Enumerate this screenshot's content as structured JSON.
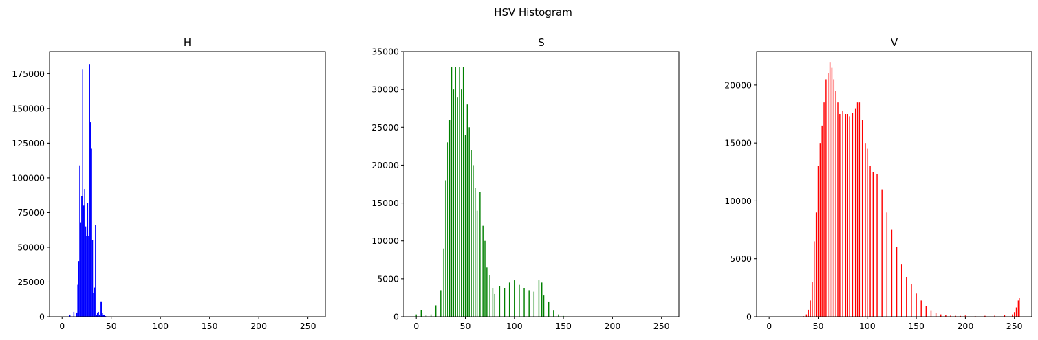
{
  "figure": {
    "suptitle": "HSV Histogram"
  },
  "chart_data": [
    {
      "type": "bar",
      "title": "H",
      "color": "#0000ff",
      "xlim": [
        -12.75,
        267.75
      ],
      "ylim": [
        0,
        191000
      ],
      "xticks": [
        0,
        50,
        100,
        150,
        200,
        250
      ],
      "yticks": [
        0,
        25000,
        50000,
        75000,
        100000,
        125000,
        150000,
        175000
      ],
      "x": [
        8,
        12,
        15,
        16,
        17,
        18,
        19,
        20,
        21,
        22,
        23,
        24,
        25,
        26,
        27,
        28,
        29,
        30,
        31,
        32,
        33,
        34,
        35,
        36,
        37,
        38,
        39,
        40,
        41,
        42,
        43,
        44,
        45
      ],
      "values": [
        1500,
        3500,
        3000,
        23000,
        40000,
        109000,
        68000,
        87000,
        178000,
        80000,
        92000,
        65000,
        58000,
        82000,
        58000,
        182000,
        140000,
        121000,
        55000,
        17000,
        21000,
        66000,
        1500,
        3000,
        3500,
        1500,
        11000,
        11000,
        2500,
        1500,
        1000,
        500,
        300
      ]
    },
    {
      "type": "bar",
      "title": "S",
      "color": "#008000",
      "xlim": [
        -12.75,
        267.75
      ],
      "ylim": [
        0,
        35000
      ],
      "xticks": [
        0,
        50,
        100,
        150,
        200,
        250
      ],
      "yticks": [
        0,
        5000,
        10000,
        15000,
        20000,
        25000,
        30000,
        35000
      ],
      "x": [
        0,
        5,
        10,
        15,
        20,
        25,
        28,
        30,
        32,
        34,
        36,
        38,
        40,
        42,
        44,
        46,
        48,
        50,
        52,
        54,
        56,
        58,
        60,
        62,
        65,
        68,
        70,
        72,
        75,
        78,
        80,
        85,
        90,
        95,
        100,
        105,
        110,
        115,
        120,
        125,
        128,
        130,
        135,
        140,
        145,
        150,
        155
      ],
      "values": [
        300,
        900,
        200,
        300,
        1500,
        3500,
        9000,
        18000,
        23000,
        26000,
        33000,
        30000,
        33000,
        29000,
        33000,
        30000,
        33000,
        24000,
        28000,
        25000,
        22000,
        20000,
        17000,
        14000,
        16500,
        12000,
        10000,
        6500,
        5500,
        3800,
        3000,
        4000,
        3800,
        4500,
        4800,
        4200,
        3800,
        3500,
        3300,
        4800,
        4500,
        2800,
        2000,
        800,
        300,
        100,
        20
      ]
    },
    {
      "type": "bar",
      "title": "V",
      "color": "#ff0000",
      "xlim": [
        -12.75,
        267.75
      ],
      "ylim": [
        0,
        22900
      ],
      "xticks": [
        0,
        50,
        100,
        150,
        200,
        250
      ],
      "yticks": [
        0,
        5000,
        10000,
        15000,
        20000
      ],
      "x": [
        35,
        38,
        40,
        42,
        44,
        46,
        48,
        50,
        52,
        54,
        56,
        58,
        60,
        62,
        64,
        66,
        68,
        70,
        72,
        75,
        78,
        80,
        82,
        85,
        88,
        90,
        92,
        95,
        98,
        100,
        103,
        106,
        110,
        115,
        120,
        125,
        130,
        135,
        140,
        145,
        150,
        155,
        160,
        165,
        170,
        175,
        180,
        185,
        190,
        195,
        200,
        210,
        220,
        230,
        240,
        248,
        250,
        252,
        254,
        255
      ],
      "values": [
        50,
        200,
        600,
        1400,
        3000,
        6500,
        9000,
        13000,
        15000,
        16500,
        18500,
        20500,
        21000,
        22000,
        21500,
        20500,
        19500,
        18500,
        17500,
        17800,
        17500,
        17500,
        17300,
        17600,
        18000,
        18500,
        18500,
        17000,
        15000,
        14500,
        13000,
        12500,
        12300,
        11000,
        9000,
        7500,
        6000,
        4500,
        3400,
        2800,
        2000,
        1400,
        900,
        500,
        300,
        200,
        150,
        100,
        80,
        70,
        100,
        60,
        80,
        100,
        120,
        200,
        400,
        800,
        1400,
        1600
      ]
    }
  ]
}
